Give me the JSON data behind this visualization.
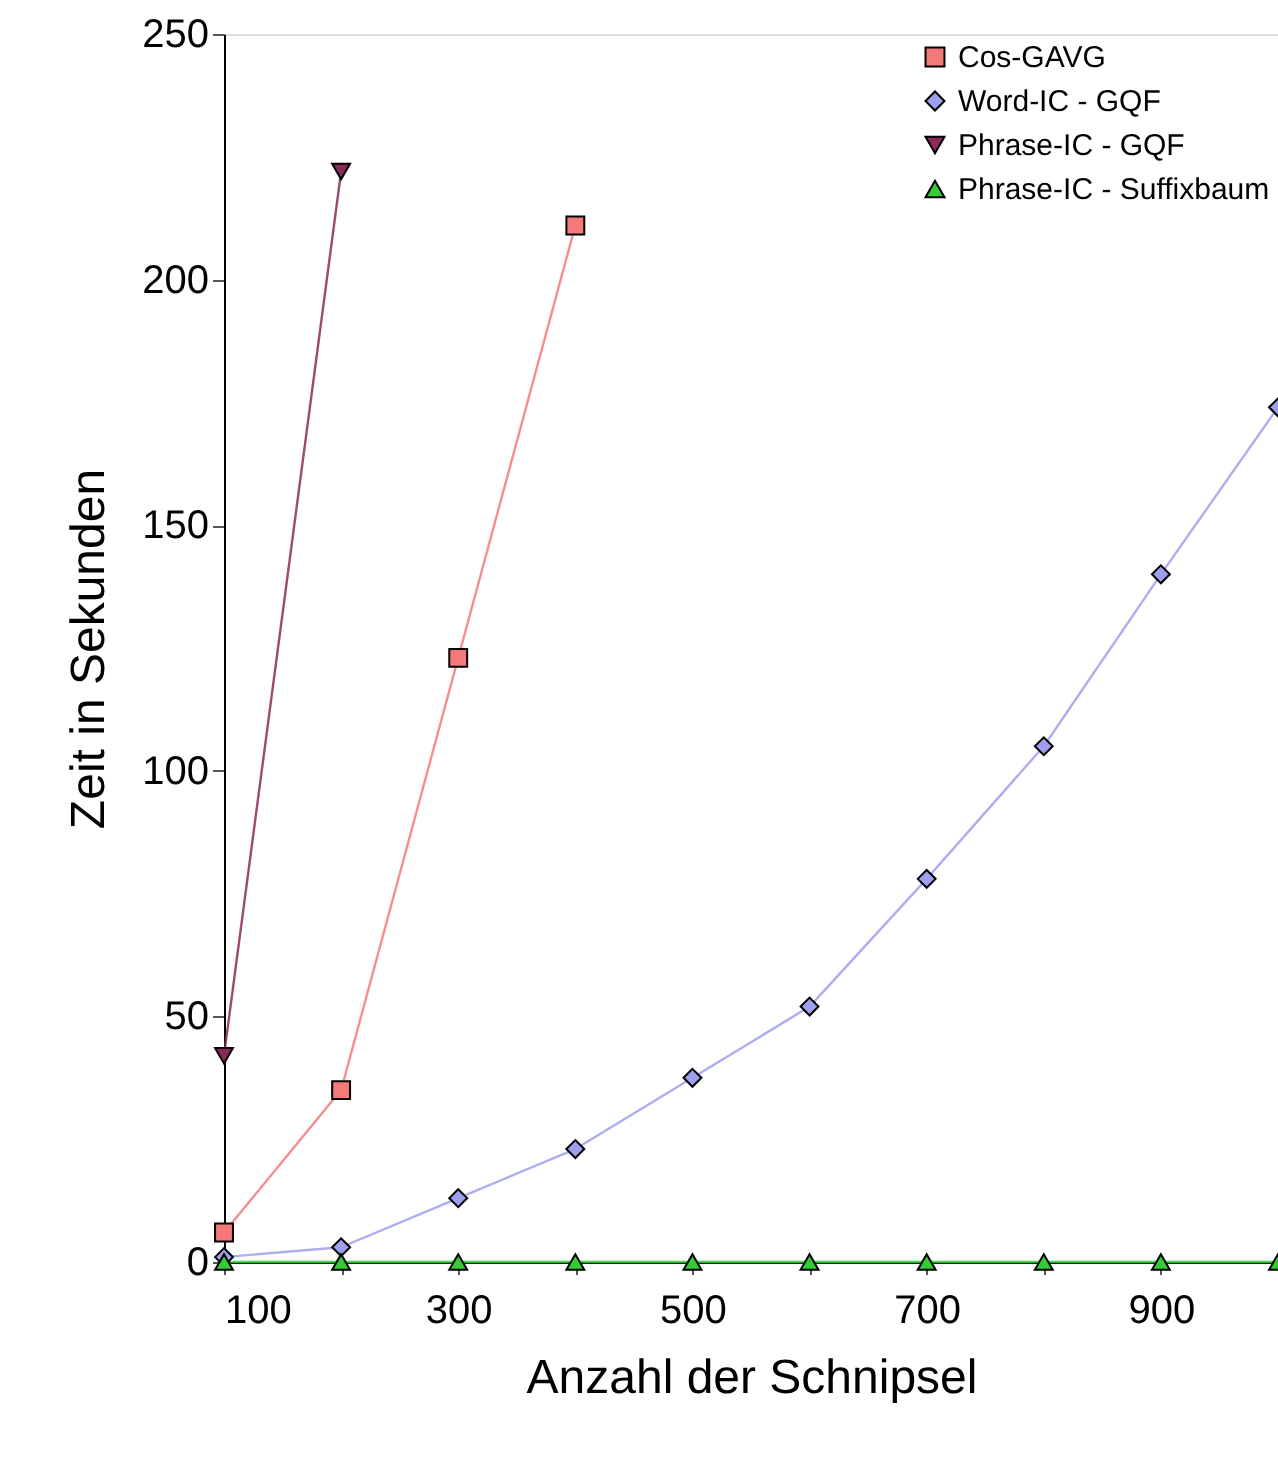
{
  "chart_data": {
    "type": "line",
    "xlabel": "Anzahl der Schnipsel",
    "ylabel": "Zeit in Sekunden",
    "xlim": [
      100,
      1000
    ],
    "xticks": [
      100,
      {
        "value": 200,
        "label": null
      },
      300,
      {
        "value": 400,
        "label": null
      },
      500,
      {
        "value": 600,
        "label": null
      },
      700,
      {
        "value": 800,
        "label": null
      },
      900,
      {
        "value": 1000,
        "label": null
      }
    ],
    "ylim": [
      0,
      250
    ],
    "yticks": [
      0,
      50,
      100,
      150,
      200,
      250
    ],
    "grid": false,
    "legend": "top right",
    "series": [
      {
        "name": "Cos-GAVG",
        "color": "#f47a7a",
        "marker": "square",
        "x": [
          100,
          200,
          300,
          400
        ],
        "values": [
          6,
          35,
          123,
          211
        ]
      },
      {
        "name": "Word-IC - GQF",
        "color": "#9f9ff0",
        "marker": "diamond",
        "x": [
          100,
          200,
          300,
          400,
          500,
          600,
          700,
          800,
          900,
          1000
        ],
        "values": [
          1,
          3,
          13,
          23,
          37.5,
          52,
          78,
          105,
          140,
          174
        ]
      },
      {
        "name": "Phrase-IC - GQF",
        "color": "#8b2a5a",
        "marker": "triangle-down",
        "x": [
          100,
          200
        ],
        "values": [
          42,
          222
        ]
      },
      {
        "name": "Phrase-IC - Suffixbaum",
        "color": "#33cc33",
        "marker": "triangle-up",
        "x": [
          100,
          200,
          300,
          400,
          500,
          600,
          700,
          800,
          900,
          1000
        ],
        "values": [
          0,
          0,
          0,
          0,
          0,
          0,
          0,
          0,
          0,
          0
        ]
      }
    ]
  }
}
